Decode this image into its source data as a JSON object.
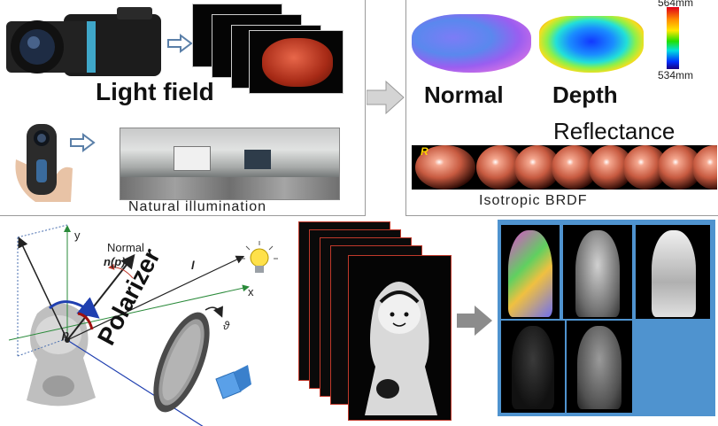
{
  "top_left": {
    "light_field_label": "Light field",
    "natural_illumination_label": "Natural illumination"
  },
  "top_right": {
    "normal_label": "Normal",
    "depth_label": "Depth",
    "reflectance_label": "Reflectance",
    "isotropic_brdf_label": "Isotropic BRDF",
    "colorbar_max": "564mm",
    "colorbar_min": "534mm",
    "brdf_first_label": "R"
  },
  "bottom_left": {
    "axis_y": "y",
    "axis_x": "x",
    "normal_text": "Normal",
    "normal_symbol": "n(p)",
    "light_symbol": "l",
    "point_symbol": "p",
    "polarizer_label": "Polarizer",
    "angle_symbol": "ϑ"
  },
  "colors": {
    "arrow_outline": "#5a7fa8",
    "arrow_gray": "#8c8c8c",
    "result_bg": "#4f93cf",
    "red_frame": "#c0392b"
  }
}
